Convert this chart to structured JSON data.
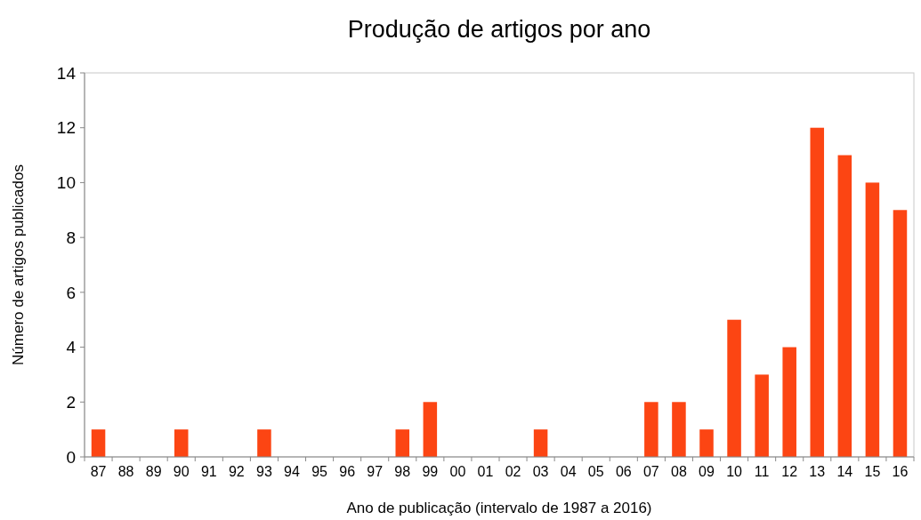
{
  "chart_data": {
    "type": "bar",
    "title": "Produção de artigos por ano",
    "xlabel": "Ano de publicação (intervalo de 1987 a 2016)",
    "ylabel": "Número de artigos publicados",
    "categories": [
      "87",
      "88",
      "89",
      "90",
      "91",
      "92",
      "93",
      "94",
      "95",
      "96",
      "97",
      "98",
      "99",
      "00",
      "01",
      "02",
      "03",
      "04",
      "05",
      "06",
      "07",
      "08",
      "09",
      "10",
      "11",
      "12",
      "13",
      "14",
      "15",
      "16"
    ],
    "values": [
      1,
      0,
      0,
      1,
      0,
      0,
      1,
      0,
      0,
      0,
      0,
      1,
      2,
      0,
      0,
      0,
      1,
      0,
      0,
      0,
      2,
      2,
      1,
      5,
      3,
      4,
      12,
      11,
      10,
      9
    ],
    "color": "#fc4513",
    "ylim": [
      0,
      14
    ],
    "yticks": [
      0,
      2,
      4,
      6,
      8,
      10,
      12,
      14
    ],
    "grid": false
  }
}
